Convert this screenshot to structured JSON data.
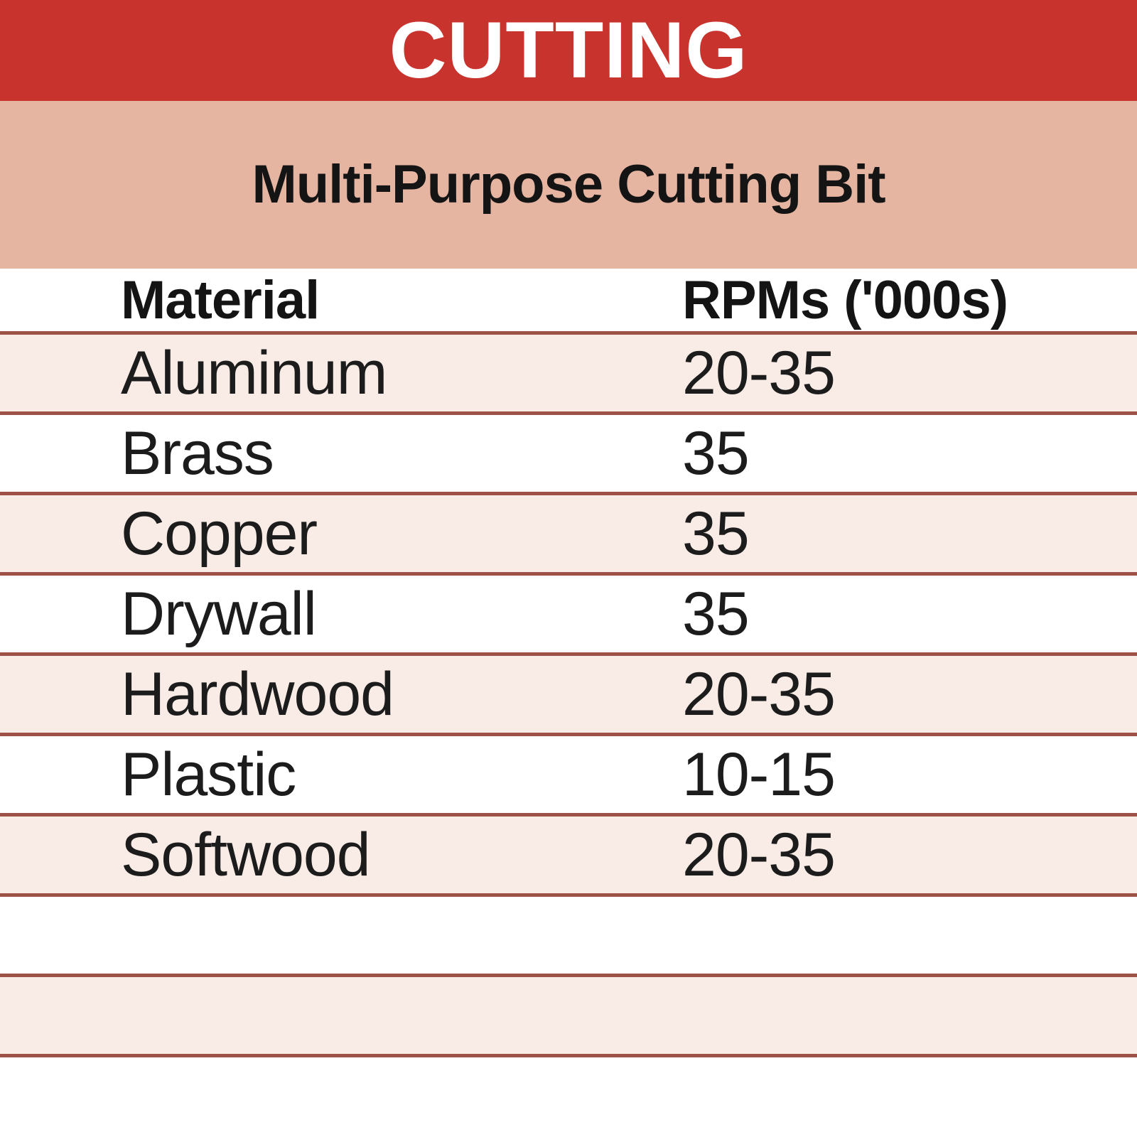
{
  "title_band": {
    "label": "CUTTING"
  },
  "subtitle_band": {
    "label": "Multi-Purpose Cutting Bit"
  },
  "table": {
    "columns": [
      "Material",
      "RPMs ('000s)"
    ],
    "rows": [
      {
        "material": "Aluminum",
        "rpm": "20-35"
      },
      {
        "material": "Brass",
        "rpm": "35"
      },
      {
        "material": "Copper",
        "rpm": "35"
      },
      {
        "material": "Drywall",
        "rpm": "35"
      },
      {
        "material": "Hardwood",
        "rpm": "20-35"
      },
      {
        "material": "Plastic",
        "rpm": "10-15"
      },
      {
        "material": "Softwood",
        "rpm": "20-35"
      },
      {
        "material": "",
        "rpm": ""
      },
      {
        "material": "",
        "rpm": ""
      },
      {
        "material": "",
        "rpm": ""
      }
    ]
  },
  "chart_data": {
    "type": "table",
    "title": "CUTTING",
    "subtitle": "Multi-Purpose Cutting Bit",
    "columns": [
      "Material",
      "RPMs ('000s)"
    ],
    "rows": [
      [
        "Aluminum",
        "20-35"
      ],
      [
        "Brass",
        "35"
      ],
      [
        "Copper",
        "35"
      ],
      [
        "Drywall",
        "35"
      ],
      [
        "Hardwood",
        "20-35"
      ],
      [
        "Plastic",
        "10-15"
      ],
      [
        "Softwood",
        "20-35"
      ]
    ]
  },
  "colors": {
    "header_red": "#c9332d",
    "subtitle_salmon": "#e6b5a2",
    "row_pink": "#f9ece7",
    "row_border": "#9e5247",
    "title_text": "#ffffff",
    "body_text": "#1c1c1c"
  }
}
